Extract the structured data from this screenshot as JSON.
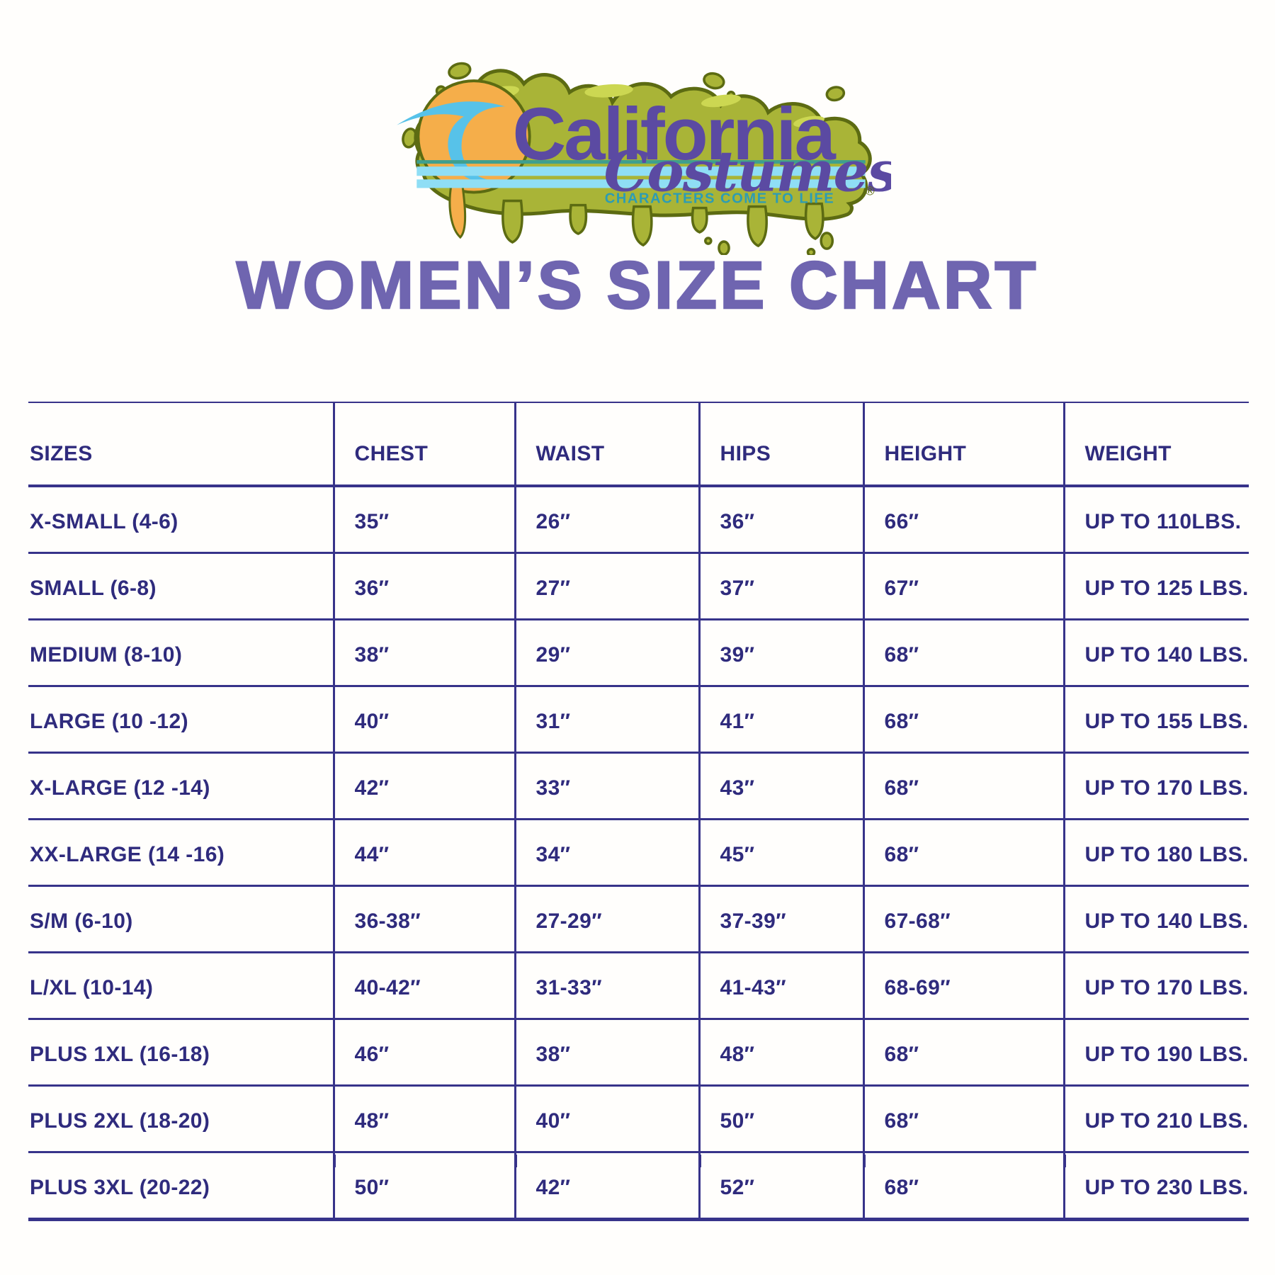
{
  "logo": {
    "brand_word_1": "California",
    "brand_word_2": "Costumes",
    "tagline": "CHARACTERS COME TO LIFE",
    "registered_mark": "®",
    "colors": {
      "slime_green": "#a9b437",
      "slime_outline": "#5c6b12",
      "slime_highlight": "#ccd752",
      "sun_orange": "#f5ae4a",
      "wave_blue": "#57c2e9",
      "stripe_light_blue": "#8fdef5",
      "stripe_teal": "#3f9f8e",
      "script_purple": "#5b4aa2",
      "tagline_teal": "#2d9cb4"
    }
  },
  "title": {
    "text": "WOMEN’S SIZE CHART",
    "color": "#6f65b0"
  },
  "table": {
    "ink_color": "#2f2b7d",
    "line_color": "#37338a",
    "columns": [
      "SIZES",
      "CHEST",
      "WAIST",
      "HIPS",
      "HEIGHT",
      "WEIGHT"
    ],
    "rows": [
      [
        "X-SMALL (4-6)",
        "35″",
        "26″",
        "36″",
        "66″",
        "UP TO 110LBS."
      ],
      [
        "SMALL (6-8)",
        "36″",
        "27″",
        "37″",
        "67″",
        "UP TO 125 LBS."
      ],
      [
        "MEDIUM (8-10)",
        "38″",
        "29″",
        "39″",
        "68″",
        "UP TO 140 LBS."
      ],
      [
        "LARGE (10 -12)",
        "40″",
        "31″",
        "41″",
        "68″",
        "UP TO 155 LBS."
      ],
      [
        "X-LARGE (12 -14)",
        "42″",
        "33″",
        "43″",
        "68″",
        "UP TO 170 LBS."
      ],
      [
        "XX-LARGE (14 -16)",
        "44″",
        "34″",
        "45″",
        "68″",
        "UP TO 180 LBS."
      ],
      [
        "S/M (6-10)",
        "36-38″",
        "27-29″",
        "37-39″",
        "67-68″",
        "UP TO 140 LBS."
      ],
      [
        "L/XL (10-14)",
        "40-42″",
        "31-33″",
        "41-43″",
        "68-69″",
        "UP TO 170 LBS."
      ],
      [
        "PLUS 1XL (16-18)",
        "46″",
        "38″",
        "48″",
        "68″",
        "UP TO 190 LBS."
      ],
      [
        "PLUS 2XL (18-20)",
        "48″",
        "40″",
        "50″",
        "68″",
        "UP TO 210 LBS."
      ],
      [
        "PLUS 3XL (20-22)",
        "50″",
        "42″",
        "52″",
        "68″",
        "UP TO 230 LBS."
      ]
    ]
  }
}
